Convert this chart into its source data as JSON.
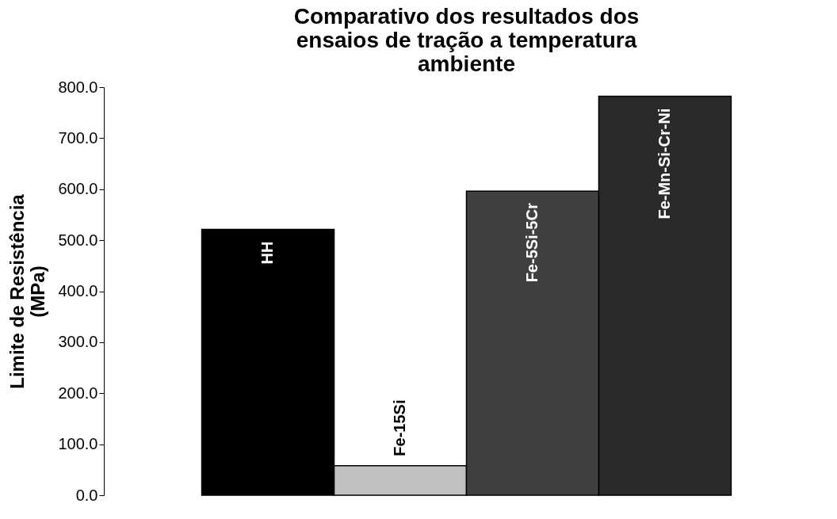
{
  "chart_data": {
    "type": "bar",
    "title": "Comparativo dos resultados dos ensaios de tração a temperatura ambiente",
    "ylabel": "Limite de Resistência (MPa)",
    "categories": [
      "HH",
      "Fe-15Si",
      "Fe-5Si-5Cr",
      "Fe-Mn-Si-Cr-Ni"
    ],
    "values": [
      521,
      58,
      596,
      782
    ],
    "colors": [
      "#000000",
      "#c0c0c0",
      "#404040",
      "#2a2a2a"
    ],
    "ylim": [
      0,
      800
    ],
    "yticks": [
      {
        "value": 0,
        "label": "0.0"
      },
      {
        "value": 100,
        "label": "100.0"
      },
      {
        "value": 200,
        "label": "200.0"
      },
      {
        "value": 300,
        "label": "300.0"
      },
      {
        "value": 400,
        "label": "400.0"
      },
      {
        "value": 500,
        "label": "500.0"
      },
      {
        "value": 600,
        "label": "600.0"
      },
      {
        "value": 700,
        "label": "700.0"
      },
      {
        "value": 800,
        "label": "800.0"
      }
    ],
    "grid": false,
    "legend": false,
    "tick_labels": "y"
  }
}
